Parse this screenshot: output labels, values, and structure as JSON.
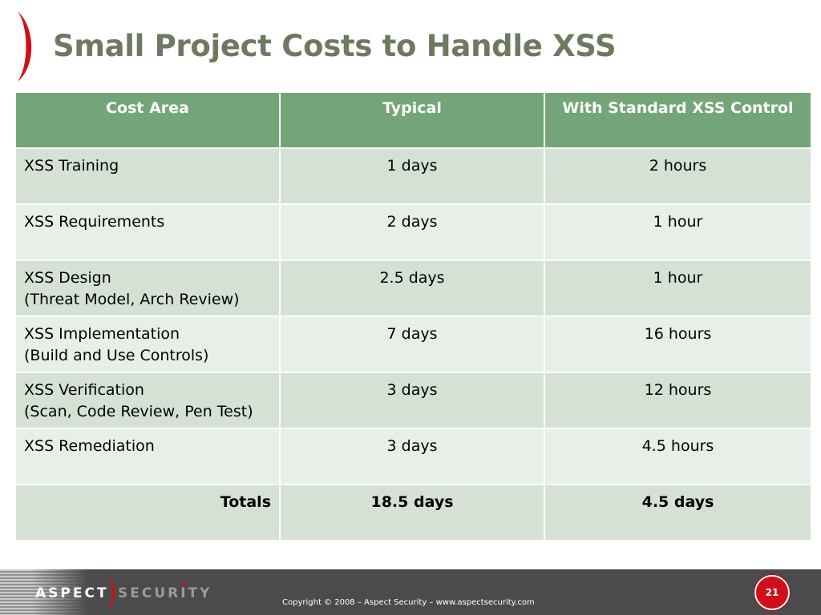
{
  "slide": {
    "title": "Small Project Costs to Handle XSS",
    "accent_color": "#d10f1b",
    "title_color": "#6e7a5f",
    "header_color": "#73a578"
  },
  "table": {
    "headers": [
      "Cost Area",
      "Typical",
      "With Standard XSS Control"
    ],
    "rows": [
      {
        "area": "XSS Training",
        "area_detail": "",
        "typical": "1 days",
        "standard": "2 hours"
      },
      {
        "area": "XSS Requirements",
        "area_detail": "",
        "typical": "2 days",
        "standard": "1 hour"
      },
      {
        "area": "XSS Design",
        "area_detail": "(Threat Model, Arch Review)",
        "typical": "2.5 days",
        "standard": "1 hour"
      },
      {
        "area": "XSS Implementation",
        "area_detail": "(Build and Use Controls)",
        "typical": "7 days",
        "standard": "16 hours"
      },
      {
        "area": "XSS Verification",
        "area_detail": "(Scan, Code Review, Pen Test)",
        "typical": "3 days",
        "standard": "12 hours"
      },
      {
        "area": "XSS Remediation",
        "area_detail": "",
        "typical": "3 days",
        "standard": "4.5 hours"
      }
    ],
    "totals": {
      "label": "Totals",
      "typical": "18.5 days",
      "standard": "4.5 days"
    }
  },
  "footer": {
    "logo_left": "ASPECT",
    "logo_right": "SECURITY",
    "copyright": "Copyright © 2008 – Aspect Security – www.aspectsecurity.com",
    "page_number": "21"
  }
}
